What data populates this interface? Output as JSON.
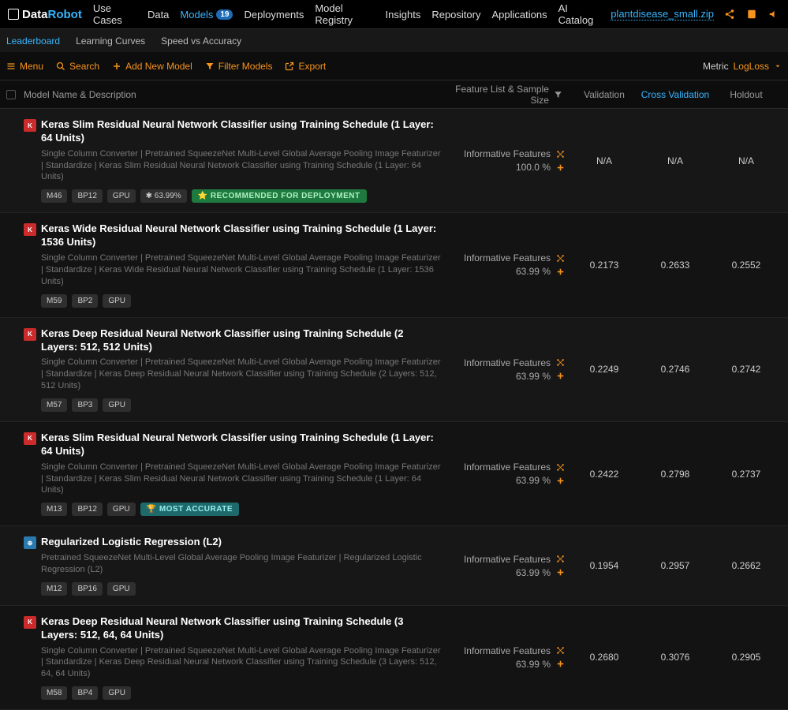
{
  "brand": {
    "part1": "Data",
    "part2": "Robot"
  },
  "nav": {
    "items": [
      {
        "label": "Use Cases"
      },
      {
        "label": "Data"
      },
      {
        "label": "Models",
        "active": true,
        "badge": "19"
      },
      {
        "label": "Deployments"
      },
      {
        "label": "Model Registry"
      },
      {
        "label": "Insights"
      },
      {
        "label": "Repository"
      },
      {
        "label": "Applications"
      },
      {
        "label": "AI Catalog"
      }
    ],
    "project": "plantdisease_small.zip"
  },
  "subnav": {
    "tabs": [
      {
        "label": "Leaderboard",
        "active": true
      },
      {
        "label": "Learning Curves"
      },
      {
        "label": "Speed vs Accuracy"
      }
    ]
  },
  "toolbar": {
    "menu": "Menu",
    "search": "Search",
    "add": "Add New Model",
    "filter": "Filter Models",
    "export": "Export",
    "metric_label": "Metric",
    "metric_value": "LogLoss"
  },
  "columns": {
    "name": "Model Name & Description",
    "feat": "Feature List & Sample Size",
    "validation": "Validation",
    "cv": "Cross Validation",
    "holdout": "Holdout"
  },
  "models": [
    {
      "icon": "K",
      "title": "Keras Slim Residual Neural Network Classifier using Training Schedule (1 Layer: 64 Units)",
      "desc": "Single Column Converter | Pretrained SqueezeNet Multi-Level Global Average Pooling Image Featurizer | Standardize | Keras Slim Residual Neural Network Classifier using Training Schedule (1 Layer: 64 Units)",
      "tags": [
        "M46",
        "BP12",
        "GPU"
      ],
      "star": "63.99%",
      "badge": "RECOMMENDED FOR DEPLOYMENT",
      "badge_type": "rec",
      "feat": "Informative Features",
      "pct": "100.0 %",
      "val": "N/A",
      "cv": "N/A",
      "hold": "N/A"
    },
    {
      "icon": "K",
      "title": "Keras Wide Residual Neural Network Classifier using Training Schedule (1 Layer: 1536 Units)",
      "desc": "Single Column Converter | Pretrained SqueezeNet Multi-Level Global Average Pooling Image Featurizer | Standardize | Keras Wide Residual Neural Network Classifier using Training Schedule (1 Layer: 1536 Units)",
      "tags": [
        "M59",
        "BP2",
        "GPU"
      ],
      "feat": "Informative Features",
      "pct": "63.99 %",
      "val": "0.2173",
      "cv": "0.2633",
      "hold": "0.2552"
    },
    {
      "icon": "K",
      "title": "Keras Deep Residual Neural Network Classifier using Training Schedule (2 Layers: 512, 512 Units)",
      "desc": "Single Column Converter | Pretrained SqueezeNet Multi-Level Global Average Pooling Image Featurizer | Standardize | Keras Deep Residual Neural Network Classifier using Training Schedule (2 Layers: 512, 512 Units)",
      "tags": [
        "M57",
        "BP3",
        "GPU"
      ],
      "feat": "Informative Features",
      "pct": "63.99 %",
      "val": "0.2249",
      "cv": "0.2746",
      "hold": "0.2742"
    },
    {
      "icon": "K",
      "title": "Keras Slim Residual Neural Network Classifier using Training Schedule (1 Layer: 64 Units)",
      "desc": "Single Column Converter | Pretrained SqueezeNet Multi-Level Global Average Pooling Image Featurizer | Standardize | Keras Slim Residual Neural Network Classifier using Training Schedule (1 Layer: 64 Units)",
      "tags": [
        "M13",
        "BP12",
        "GPU"
      ],
      "badge": "MOST ACCURATE",
      "badge_type": "acc",
      "feat": "Informative Features",
      "pct": "63.99 %",
      "val": "0.2422",
      "cv": "0.2798",
      "hold": "0.2737"
    },
    {
      "icon": "LR",
      "icon_type": "lr",
      "title": "Regularized Logistic Regression (L2)",
      "desc": "Pretrained SqueezeNet Multi-Level Global Average Pooling Image Featurizer | Regularized Logistic Regression (L2)",
      "tags": [
        "M12",
        "BP16",
        "GPU"
      ],
      "feat": "Informative Features",
      "pct": "63.99 %",
      "val": "0.1954",
      "cv": "0.2957",
      "hold": "0.2662"
    },
    {
      "icon": "K",
      "title": "Keras Deep Residual Neural Network Classifier using Training Schedule (3 Layers: 512, 64, 64 Units)",
      "desc": "Single Column Converter | Pretrained SqueezeNet Multi-Level Global Average Pooling Image Featurizer | Standardize | Keras Deep Residual Neural Network Classifier using Training Schedule (3 Layers: 512, 64, 64 Units)",
      "tags": [
        "M58",
        "BP4",
        "GPU"
      ],
      "feat": "Informative Features",
      "pct": "63.99 %",
      "val": "0.2680",
      "cv": "0.3076",
      "hold": "0.2905"
    }
  ]
}
